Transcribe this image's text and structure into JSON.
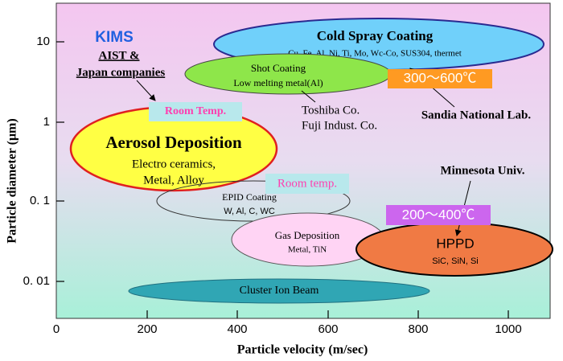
{
  "axes": {
    "x_label": "Particle velocity (m/sec)",
    "y_label": "Particle diameter (μm)",
    "x_ticks": [
      "0",
      "200",
      "400",
      "600",
      "800",
      "1000"
    ],
    "y_ticks": [
      "10",
      "1",
      "0. 1",
      "0. 01"
    ]
  },
  "regions": [
    {
      "title": "Cold Spray Coating",
      "detail": "Cu, Fe, Al, Ni, Ti, Mo, Wc-Co, SUS304, thermet"
    },
    {
      "title": "Shot Coating",
      "detail": "Low melting metal(Al)"
    },
    {
      "title": "Aerosol Deposition",
      "detail": [
        "Electro ceramics,",
        "Metal, Alloy"
      ]
    },
    {
      "title": "EPID Coating",
      "detail": "W, Al, C, WC"
    },
    {
      "title": "Gas Deposition",
      "detail": "Metal, TiN"
    },
    {
      "title": "HPPD",
      "detail": "SiC, SiN, Si"
    },
    {
      "title": "Cluster Ion Beam"
    }
  ],
  "annotations": {
    "kims": "KIMS",
    "aist": "AIST &",
    "japan": "Japan companies",
    "room_temp_1": "Room Temp.",
    "room_temp_2": "Room temp.",
    "toshiba": "Toshiba Co.",
    "fuji": "Fuji Indust. Co.",
    "sandia": "Sandia National Lab.",
    "minnesota": "Minnesota Univ.",
    "temp_high": "300～600℃",
    "temp_mid": "200～400℃"
  }
}
